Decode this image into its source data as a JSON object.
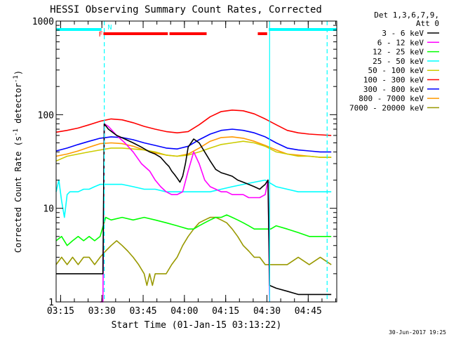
{
  "chart_data": {
    "type": "line",
    "title": "HESSI Observing Summary Count Rates, Corrected",
    "xlabel": "Start Time (01-Jan-15 03:13:22)",
    "ylabel": "Corrected Count Rate (s^-1 detector^-1)",
    "ylabel_parts": {
      "main": "Corrected Count Rate (s",
      "sup1": "-1",
      "mid": " detector",
      "sup2": "-1",
      "end": ")"
    },
    "y_scale": "log",
    "ylim": [
      1,
      1000
    ],
    "x_unit": "minutes since 03:13:22",
    "xlim": [
      0,
      102
    ],
    "x_ticks": [
      {
        "t": 1.63,
        "label": "03:15"
      },
      {
        "t": 16.63,
        "label": "03:30"
      },
      {
        "t": 31.63,
        "label": "03:45"
      },
      {
        "t": 46.63,
        "label": "04:00"
      },
      {
        "t": 61.63,
        "label": "04:15"
      },
      {
        "t": 76.63,
        "label": "04:30"
      },
      {
        "t": 91.63,
        "label": "04:45"
      }
    ],
    "y_ticks": [
      {
        "v": 1,
        "label": "1"
      },
      {
        "v": 10,
        "label": "10"
      },
      {
        "v": 100,
        "label": "100"
      },
      {
        "v": 1000,
        "label": "1000"
      }
    ],
    "grid": false,
    "legend_header": [
      "Det 1,3,6,7,9,",
      "Att 0"
    ],
    "legend_position": "right",
    "series": [
      {
        "name": "3 - 6 keV",
        "color": "#000000",
        "x": [
          0,
          4,
          8,
          12,
          14,
          16,
          17,
          17.5,
          19,
          22,
          25,
          28,
          31,
          34,
          36,
          38,
          40,
          41,
          42,
          43,
          44,
          45,
          46,
          47,
          48,
          50,
          52,
          54,
          56,
          58,
          60,
          62,
          64,
          66,
          68,
          70,
          72,
          74,
          75,
          76,
          77,
          77.6,
          80,
          84,
          88,
          92,
          96,
          100
        ],
        "y": [
          2,
          2,
          2,
          2,
          2,
          2,
          2,
          80,
          70,
          60,
          55,
          50,
          45,
          40,
          38,
          35,
          30,
          28,
          25,
          23,
          21,
          19,
          22,
          30,
          45,
          55,
          50,
          40,
          32,
          26,
          24,
          23,
          22,
          20,
          19,
          18,
          17,
          16,
          17,
          18,
          20,
          1.5,
          1.4,
          1.3,
          1.2,
          1.2,
          1.2,
          1.2
        ]
      },
      {
        "name": "6 - 12 keV",
        "color": "#ff00ff",
        "x": [
          16,
          17,
          17.5,
          19,
          22,
          25,
          28,
          31,
          34,
          36,
          38,
          40,
          42,
          44,
          46,
          48,
          50,
          52,
          54,
          56,
          58,
          60,
          62,
          64,
          66,
          68,
          70,
          72,
          74,
          76,
          77,
          77.6
        ],
        "y": [
          1,
          1,
          80,
          75,
          60,
          50,
          40,
          30,
          25,
          20,
          17,
          15,
          14,
          14,
          15,
          25,
          40,
          30,
          20,
          17,
          16,
          15,
          15,
          14,
          14,
          14,
          13,
          13,
          13,
          14,
          20,
          1
        ]
      },
      {
        "name": "12 - 25 keV",
        "color": "#00ff00",
        "x": [
          0,
          2,
          4,
          6,
          8,
          10,
          12,
          14,
          16,
          18,
          20,
          24,
          28,
          32,
          36,
          40,
          44,
          48,
          50,
          52,
          54,
          56,
          58,
          60,
          62,
          64,
          66,
          68,
          70,
          72,
          74,
          76,
          78,
          80,
          84,
          88,
          92,
          96,
          100
        ],
        "y": [
          4.5,
          5,
          4,
          4.5,
          5,
          4.5,
          5,
          4.5,
          5,
          8,
          7.5,
          8,
          7.5,
          8,
          7.5,
          7,
          6.5,
          6,
          6,
          6.5,
          7,
          7.5,
          8,
          8,
          8.5,
          8,
          7.5,
          7,
          6.5,
          6,
          6,
          6,
          6,
          6.5,
          6,
          5.5,
          5,
          5,
          5
        ]
      },
      {
        "name": "25 - 50 keV",
        "color": "#00ffff",
        "x": [
          0,
          1,
          2,
          3,
          4,
          5,
          6,
          8,
          10,
          12,
          14,
          16,
          18,
          20,
          24,
          28,
          32,
          36,
          40,
          44,
          48,
          52,
          56,
          60,
          64,
          68,
          72,
          76,
          80,
          84,
          88,
          92,
          96,
          100
        ],
        "y": [
          15,
          20,
          12,
          8,
          14,
          15,
          15,
          15,
          16,
          16,
          17,
          18,
          18,
          18,
          18,
          17,
          16,
          16,
          15,
          15,
          15,
          15,
          15,
          16,
          17,
          18,
          19,
          20,
          17,
          16,
          15,
          15,
          15,
          15
        ]
      },
      {
        "name": "50 - 100 keV",
        "color": "#cccc00",
        "x": [
          0,
          4,
          8,
          12,
          16,
          20,
          24,
          28,
          32,
          36,
          40,
          44,
          48,
          52,
          56,
          60,
          64,
          68,
          72,
          76,
          80,
          84,
          88,
          92,
          96,
          100
        ],
        "y": [
          32,
          36,
          38,
          40,
          42,
          44,
          44,
          43,
          42,
          40,
          37,
          36,
          37,
          40,
          44,
          48,
          50,
          52,
          50,
          46,
          40,
          38,
          36,
          36,
          35,
          35
        ]
      },
      {
        "name": "100 - 300 keV",
        "color": "#ff0000",
        "x": [
          0,
          4,
          8,
          12,
          16,
          20,
          24,
          28,
          32,
          36,
          40,
          44,
          48,
          52,
          56,
          60,
          64,
          68,
          72,
          76,
          80,
          84,
          88,
          92,
          96,
          100
        ],
        "y": [
          65,
          68,
          72,
          78,
          85,
          90,
          88,
          82,
          75,
          70,
          66,
          64,
          66,
          78,
          95,
          108,
          112,
          110,
          102,
          90,
          78,
          68,
          64,
          62,
          61,
          60
        ]
      },
      {
        "name": "300 - 800 keV",
        "color": "#0000ff",
        "x": [
          0,
          4,
          8,
          12,
          16,
          20,
          24,
          28,
          32,
          36,
          40,
          44,
          48,
          52,
          56,
          60,
          64,
          68,
          72,
          76,
          80,
          84,
          88,
          92,
          96,
          100
        ],
        "y": [
          41,
          44,
          48,
          52,
          56,
          58,
          57,
          54,
          50,
          47,
          44,
          43,
          46,
          54,
          62,
          68,
          70,
          68,
          64,
          58,
          50,
          44,
          42,
          41,
          40,
          40
        ]
      },
      {
        "name": "800 - 7000 keV",
        "color": "#ff9900",
        "x": [
          0,
          4,
          8,
          12,
          16,
          20,
          24,
          28,
          32,
          36,
          40,
          44,
          48,
          52,
          56,
          60,
          64,
          68,
          72,
          76,
          80,
          84,
          88,
          92,
          96,
          100
        ],
        "y": [
          36,
          38,
          41,
          45,
          49,
          50,
          49,
          46,
          42,
          39,
          37,
          36,
          38,
          44,
          52,
          57,
          58,
          56,
          52,
          47,
          42,
          38,
          37,
          36,
          35,
          35
        ]
      },
      {
        "name": "7000 - 20000 keV",
        "color": "#999900",
        "x": [
          0,
          2,
          4,
          6,
          8,
          10,
          12,
          14,
          16,
          18,
          20,
          22,
          24,
          26,
          28,
          30,
          32,
          33,
          34,
          35,
          36,
          38,
          40,
          42,
          44,
          46,
          48,
          50,
          52,
          54,
          56,
          58,
          60,
          62,
          64,
          66,
          68,
          70,
          72,
          74,
          76,
          78,
          80,
          84,
          88,
          92,
          96,
          100
        ],
        "y": [
          2.5,
          3,
          2.5,
          3,
          2.5,
          3,
          3,
          2.5,
          3,
          3.5,
          4,
          4.5,
          4,
          3.5,
          3,
          2.5,
          2,
          1.5,
          2,
          1.5,
          2,
          2,
          2,
          2.5,
          3,
          4,
          5,
          6,
          7,
          7.5,
          8,
          8,
          7.5,
          7,
          6,
          5,
          4,
          3.5,
          3,
          3,
          2.5,
          2.5,
          2.5,
          2.5,
          3,
          2.5,
          3,
          2.5
        ]
      }
    ],
    "annotations": {
      "segment_bars": [
        {
          "color": "#00ffff",
          "from": 0,
          "to": 16.5
        },
        {
          "color": "#00ffff",
          "from": 77.3,
          "to": 102
        },
        {
          "color": "#ff0000",
          "from": 17.2,
          "to": 40.6
        },
        {
          "color": "#ff0000",
          "from": 41.2,
          "to": 54.7
        },
        {
          "color": "#ff0000",
          "from": 73.3,
          "to": 76.7
        }
      ],
      "vlines": [
        {
          "t": 17.5,
          "style": "dashed",
          "color": "#00ffff"
        },
        {
          "t": 77.6,
          "style": "solid",
          "color": "#00ffff"
        },
        {
          "t": 98.5,
          "style": "dashed",
          "color": "#00ffff"
        }
      ],
      "markers": [
        {
          "t": 16.2,
          "label": "F",
          "color": "#ff0000"
        },
        {
          "t": 19.5,
          "label": "N",
          "color": "#00ffff"
        }
      ]
    },
    "footer_date": "30-Jun-2017 19:25"
  }
}
